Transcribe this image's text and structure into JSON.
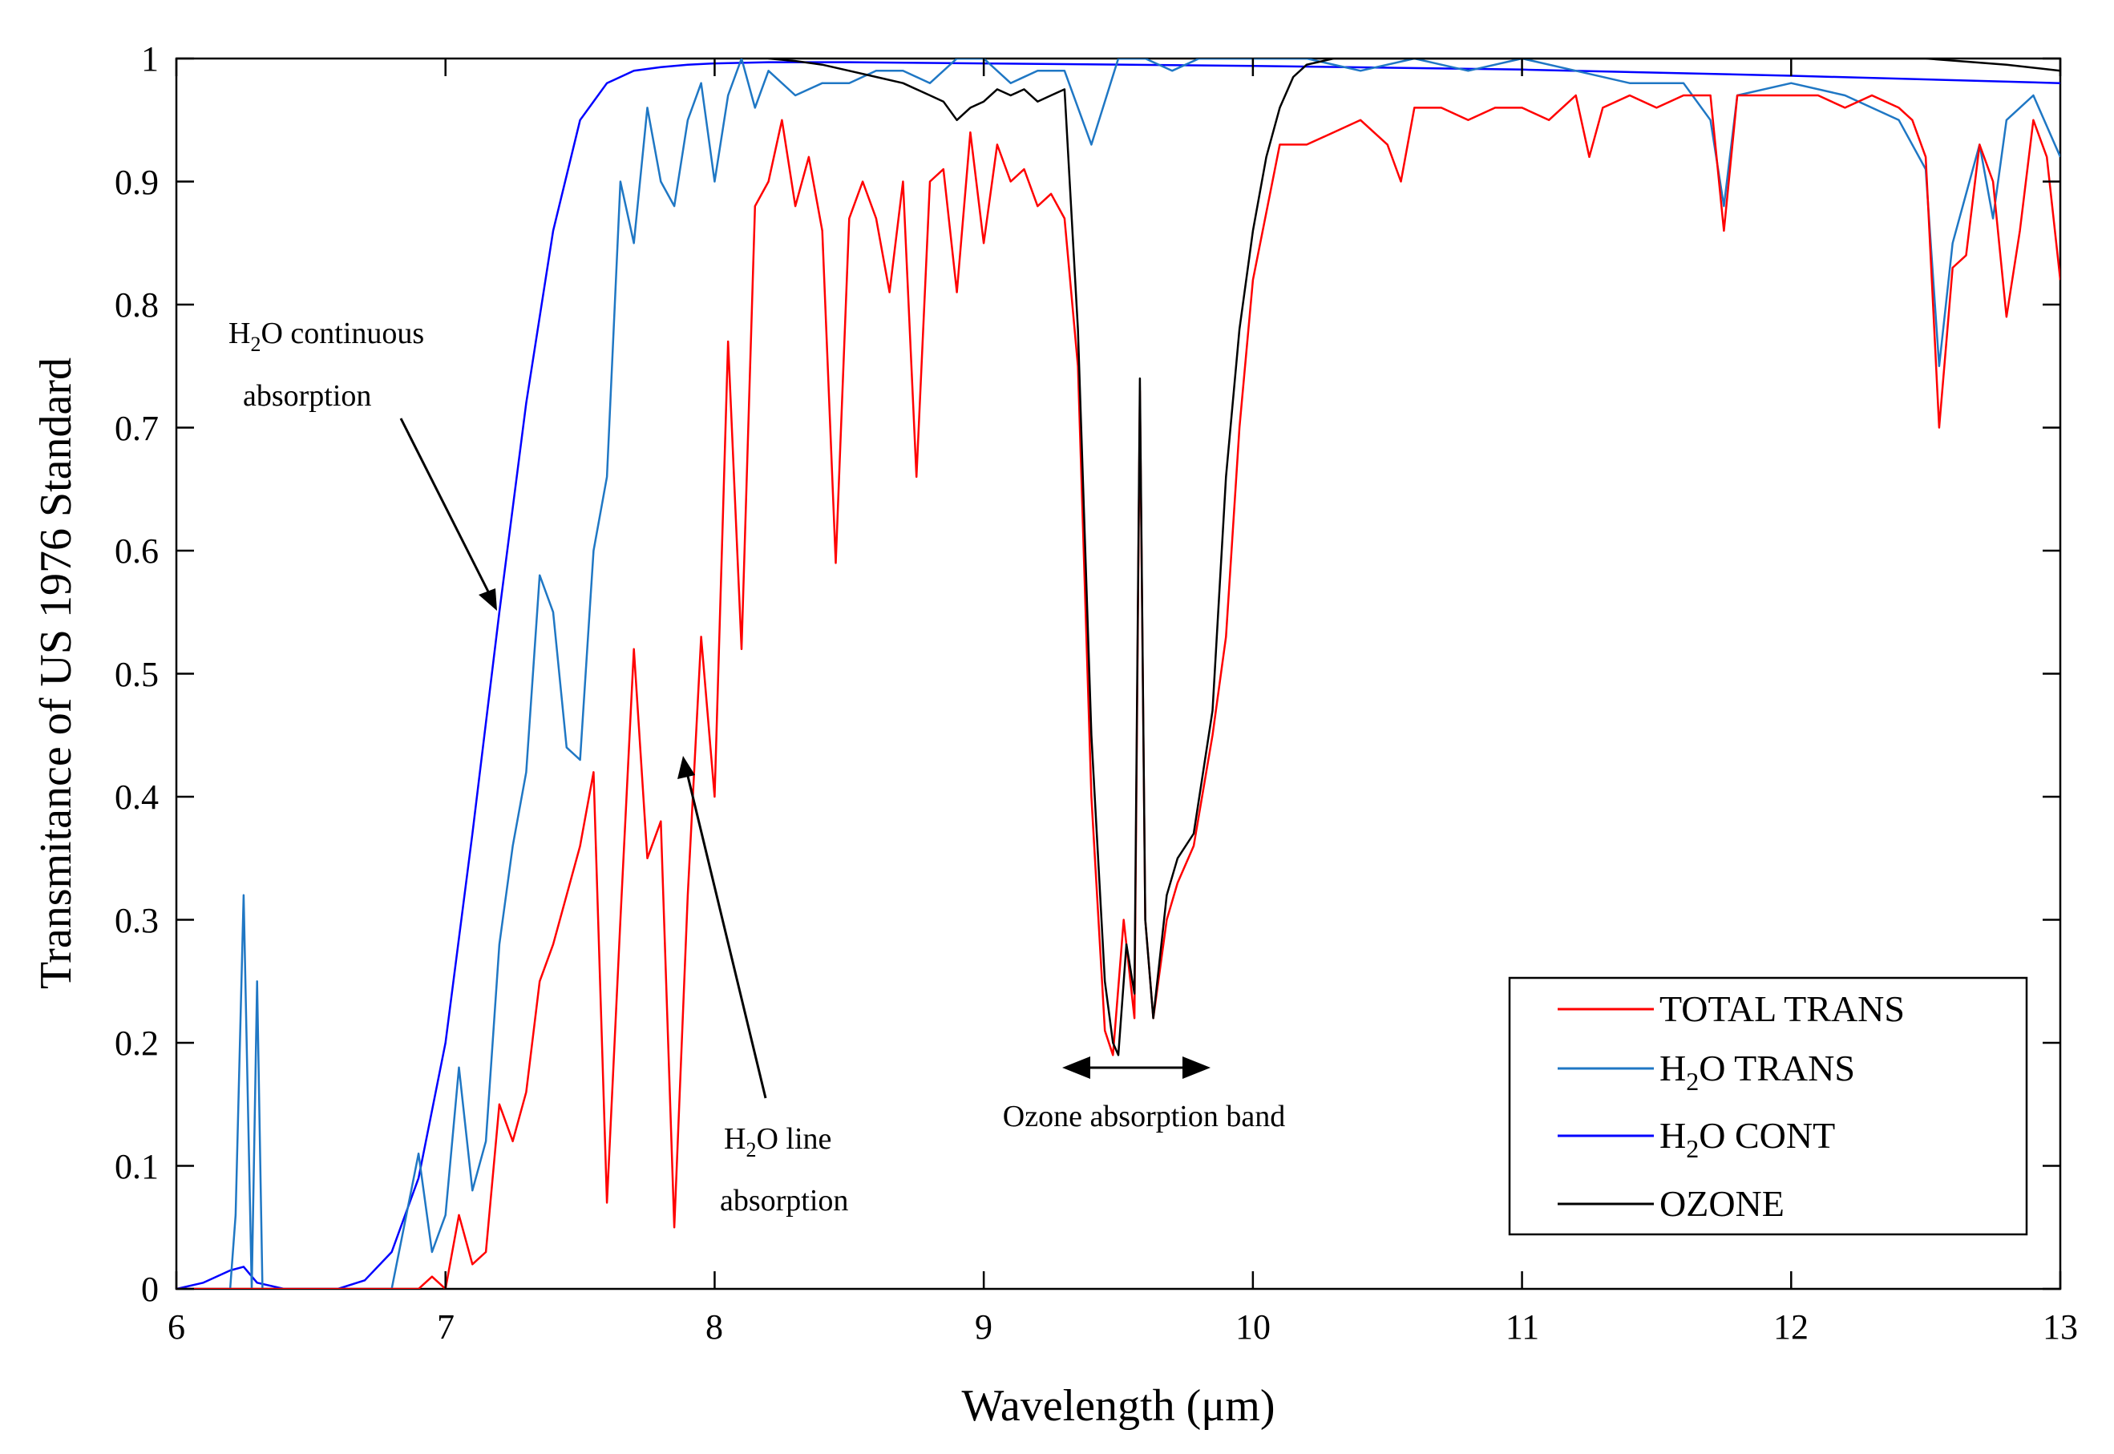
{
  "chart_data": {
    "type": "line",
    "title": "",
    "xlabel": "Wavelength (μm)",
    "ylabel": "Transmitance of US 1976 Standard",
    "xlim": [
      6,
      13
    ],
    "ylim": [
      0,
      1
    ],
    "xticks": [
      6,
      7,
      8,
      9,
      10,
      11,
      12,
      13
    ],
    "yticks": [
      0,
      0.1,
      0.2,
      0.3,
      0.4,
      0.5,
      0.6,
      0.7,
      0.8,
      0.9,
      1
    ],
    "ytick_labels": [
      "0",
      "0.1",
      "0.2",
      "0.3",
      "0.4",
      "0.5",
      "0.6",
      "0.7",
      "0.8",
      "0.9",
      "1"
    ],
    "xtick_labels": [
      "6",
      "7",
      "8",
      "9",
      "10",
      "11",
      "12",
      "13"
    ],
    "grid": false,
    "legend_position": "bottom-right",
    "series": [
      {
        "name": "TOTAL TRANS",
        "label_main": "TOTAL TRANS",
        "color": "#ff0000",
        "x": [
          6.0,
          6.9,
          6.95,
          7.0,
          7.05,
          7.1,
          7.15,
          7.2,
          7.25,
          7.3,
          7.35,
          7.4,
          7.45,
          7.5,
          7.55,
          7.6,
          7.65,
          7.7,
          7.75,
          7.8,
          7.85,
          7.9,
          7.95,
          8.0,
          8.05,
          8.1,
          8.15,
          8.2,
          8.25,
          8.3,
          8.35,
          8.4,
          8.45,
          8.5,
          8.55,
          8.6,
          8.65,
          8.7,
          8.75,
          8.8,
          8.85,
          8.9,
          8.95,
          9.0,
          9.05,
          9.1,
          9.15,
          9.2,
          9.25,
          9.3,
          9.35,
          9.4,
          9.45,
          9.48,
          9.52,
          9.56,
          9.58,
          9.6,
          9.63,
          9.68,
          9.72,
          9.78,
          9.85,
          9.9,
          9.95,
          10.0,
          10.1,
          10.2,
          10.3,
          10.4,
          10.5,
          10.55,
          10.6,
          10.7,
          10.8,
          10.9,
          11.0,
          11.1,
          11.2,
          11.25,
          11.3,
          11.4,
          11.5,
          11.6,
          11.7,
          11.75,
          11.8,
          11.9,
          12.0,
          12.1,
          12.2,
          12.3,
          12.4,
          12.45,
          12.5,
          12.55,
          12.6,
          12.65,
          12.7,
          12.75,
          12.8,
          12.85,
          12.9,
          12.95,
          13.0
        ],
        "values": [
          0.0,
          0.0,
          0.01,
          0.0,
          0.06,
          0.02,
          0.03,
          0.15,
          0.12,
          0.16,
          0.25,
          0.28,
          0.32,
          0.36,
          0.42,
          0.07,
          0.3,
          0.52,
          0.35,
          0.38,
          0.05,
          0.32,
          0.53,
          0.4,
          0.77,
          0.52,
          0.88,
          0.9,
          0.95,
          0.88,
          0.92,
          0.86,
          0.59,
          0.87,
          0.9,
          0.87,
          0.81,
          0.9,
          0.66,
          0.9,
          0.91,
          0.81,
          0.94,
          0.85,
          0.93,
          0.9,
          0.91,
          0.88,
          0.89,
          0.87,
          0.75,
          0.4,
          0.21,
          0.19,
          0.3,
          0.22,
          0.73,
          0.3,
          0.22,
          0.3,
          0.33,
          0.36,
          0.45,
          0.53,
          0.7,
          0.82,
          0.93,
          0.93,
          0.94,
          0.95,
          0.93,
          0.9,
          0.96,
          0.96,
          0.95,
          0.96,
          0.96,
          0.95,
          0.97,
          0.92,
          0.96,
          0.97,
          0.96,
          0.97,
          0.97,
          0.86,
          0.97,
          0.97,
          0.97,
          0.97,
          0.96,
          0.97,
          0.96,
          0.95,
          0.92,
          0.7,
          0.83,
          0.84,
          0.93,
          0.9,
          0.79,
          0.86,
          0.95,
          0.92,
          0.82
        ]
      },
      {
        "name": "H2O TRANS",
        "label_main": "H",
        "label_sub": "2",
        "label_rest": "O TRANS",
        "color": "#1f77c4",
        "x": [
          6.0,
          6.2,
          6.22,
          6.25,
          6.28,
          6.3,
          6.32,
          6.35,
          6.75,
          6.8,
          6.9,
          6.95,
          7.0,
          7.05,
          7.1,
          7.15,
          7.2,
          7.25,
          7.3,
          7.35,
          7.4,
          7.45,
          7.5,
          7.55,
          7.6,
          7.65,
          7.7,
          7.75,
          7.8,
          7.85,
          7.9,
          7.95,
          8.0,
          8.05,
          8.1,
          8.15,
          8.2,
          8.3,
          8.4,
          8.5,
          8.6,
          8.7,
          8.8,
          8.9,
          9.0,
          9.1,
          9.2,
          9.3,
          9.4,
          9.5,
          9.6,
          9.7,
          9.8,
          9.9,
          10.0,
          10.2,
          10.4,
          10.6,
          10.8,
          11.0,
          11.2,
          11.4,
          11.6,
          11.7,
          11.75,
          11.8,
          12.0,
          12.2,
          12.4,
          12.5,
          12.55,
          12.6,
          12.7,
          12.75,
          12.8,
          12.9,
          13.0
        ],
        "values": [
          0.0,
          0.0,
          0.06,
          0.32,
          0.0,
          0.25,
          0.0,
          0.0,
          0.0,
          0.0,
          0.11,
          0.03,
          0.06,
          0.18,
          0.08,
          0.12,
          0.28,
          0.36,
          0.42,
          0.58,
          0.55,
          0.44,
          0.43,
          0.6,
          0.66,
          0.9,
          0.85,
          0.96,
          0.9,
          0.88,
          0.95,
          0.98,
          0.9,
          0.97,
          1.0,
          0.96,
          0.99,
          0.97,
          0.98,
          0.98,
          0.99,
          0.99,
          0.98,
          1.0,
          1.0,
          0.98,
          0.99,
          0.99,
          0.93,
          1.0,
          1.0,
          0.99,
          1.0,
          1.0,
          1.0,
          1.0,
          0.99,
          1.0,
          0.99,
          1.0,
          0.99,
          0.98,
          0.98,
          0.95,
          0.88,
          0.97,
          0.98,
          0.97,
          0.95,
          0.91,
          0.75,
          0.85,
          0.93,
          0.87,
          0.95,
          0.97,
          0.92
        ]
      },
      {
        "name": "H2O CONT",
        "label_main": "H",
        "label_sub": "2",
        "label_rest": "O CONT",
        "color": "#0000ff",
        "x": [
          6.0,
          6.1,
          6.2,
          6.25,
          6.3,
          6.4,
          6.5,
          6.6,
          6.7,
          6.8,
          6.9,
          7.0,
          7.1,
          7.2,
          7.3,
          7.4,
          7.5,
          7.6,
          7.7,
          7.8,
          7.9,
          8.0,
          8.2,
          8.5,
          9.0,
          10.0,
          11.0,
          12.0,
          13.0
        ],
        "values": [
          0.0,
          0.005,
          0.015,
          0.018,
          0.005,
          0.0,
          0.0,
          0.0,
          0.007,
          0.03,
          0.09,
          0.2,
          0.37,
          0.55,
          0.72,
          0.86,
          0.95,
          0.98,
          0.99,
          0.993,
          0.995,
          0.996,
          0.997,
          0.997,
          0.996,
          0.994,
          0.991,
          0.986,
          0.98
        ]
      },
      {
        "name": "OZONE",
        "label_main": "OZONE",
        "color": "#000000",
        "x": [
          8.2,
          8.3,
          8.4,
          8.5,
          8.6,
          8.7,
          8.8,
          8.85,
          8.9,
          8.95,
          9.0,
          9.05,
          9.1,
          9.15,
          9.2,
          9.25,
          9.3,
          9.35,
          9.4,
          9.45,
          9.48,
          9.5,
          9.53,
          9.56,
          9.58,
          9.6,
          9.63,
          9.68,
          9.72,
          9.78,
          9.85,
          9.9,
          9.95,
          10.0,
          10.05,
          10.1,
          10.15,
          10.2,
          10.3,
          10.5,
          11.0,
          11.5,
          12.0,
          12.5,
          12.8,
          13.0
        ],
        "values": [
          1.0,
          0.998,
          0.995,
          0.99,
          0.985,
          0.98,
          0.97,
          0.965,
          0.95,
          0.96,
          0.965,
          0.975,
          0.97,
          0.975,
          0.965,
          0.97,
          0.975,
          0.78,
          0.45,
          0.25,
          0.2,
          0.19,
          0.28,
          0.24,
          0.74,
          0.3,
          0.22,
          0.32,
          0.35,
          0.37,
          0.47,
          0.66,
          0.78,
          0.86,
          0.92,
          0.96,
          0.985,
          0.995,
          1.0,
          1.0,
          1.0,
          1.0,
          1.0,
          1.0,
          0.995,
          0.99
        ]
      }
    ],
    "annotations": {
      "cont_line1_main": "H",
      "cont_line1_sub": "2",
      "cont_line1_rest": "O continuous",
      "cont_line2": "absorption",
      "line_line1_main": "H",
      "line_line1_sub": "2",
      "line_line1_rest": "O line",
      "line_line2": "absorption",
      "ozone_text": "Ozone absorption band"
    }
  }
}
